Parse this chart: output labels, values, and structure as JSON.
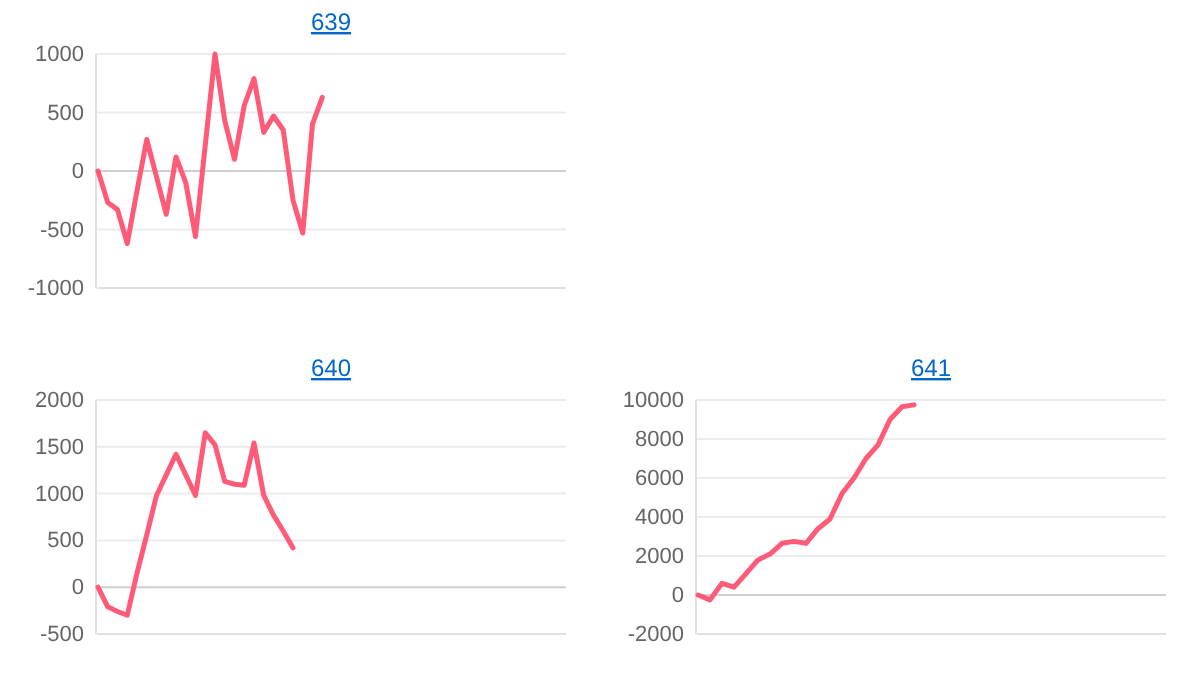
{
  "chart_data": [
    {
      "type": "line",
      "title": "639",
      "categories": [
        null,
        null,
        null,
        null,
        null,
        null,
        null,
        null,
        null,
        null,
        null,
        null,
        null,
        null,
        null,
        null,
        null,
        null,
        null,
        null,
        null,
        null,
        null,
        null,
        null,
        null,
        null,
        null,
        null,
        null,
        null,
        null,
        null,
        null,
        null,
        null,
        null,
        null,
        null,
        null,
        null,
        null,
        null,
        null,
        null,
        null,
        null,
        null,
        null
      ],
      "series": [
        {
          "color": "#ff5a78",
          "values": [
            0,
            -270,
            -330,
            -620,
            -170,
            270,
            -50,
            -370,
            120,
            -100,
            -560,
            220,
            1000,
            430,
            100,
            560,
            790,
            330,
            470,
            350,
            -250,
            -530,
            400,
            630,
            null,
            null,
            null,
            null,
            null,
            null,
            null,
            null,
            null,
            null,
            null,
            null,
            null,
            null,
            null,
            null,
            null,
            null,
            null,
            null,
            null,
            null,
            null,
            null,
            null
          ]
        }
      ],
      "ylim": [
        -1000,
        1000
      ],
      "yticks": [
        -1000,
        -500,
        0,
        500,
        1000
      ],
      "grid": "y",
      "tick_labels": "y",
      "marker": "none",
      "line_style": "solid",
      "legend": false
    },
    {
      "type": "line",
      "title": "640",
      "categories": [
        null,
        null,
        null,
        null,
        null,
        null,
        null,
        null,
        null,
        null,
        null,
        null,
        null,
        null,
        null,
        null,
        null,
        null,
        null,
        null,
        null,
        null,
        null,
        null,
        null,
        null,
        null,
        null,
        null,
        null,
        null,
        null,
        null,
        null,
        null,
        null,
        null,
        null,
        null,
        null,
        null,
        null,
        null,
        null,
        null,
        null,
        null,
        null,
        null
      ],
      "series": [
        {
          "color": "#ff5a78",
          "values": [
            0,
            -210,
            -260,
            -300,
            150,
            560,
            980,
            1200,
            1420,
            1200,
            980,
            1650,
            1520,
            1130,
            1100,
            1090,
            1540,
            980,
            770,
            600,
            420,
            null,
            null,
            null,
            null,
            null,
            null,
            null,
            null,
            null,
            null,
            null,
            null,
            null,
            null,
            null,
            null,
            null,
            null,
            null,
            null,
            null,
            null,
            null,
            null,
            null,
            null,
            null,
            null
          ]
        }
      ],
      "ylim": [
        -500,
        2000
      ],
      "yticks": [
        -500,
        0,
        500,
        1000,
        1500,
        2000
      ],
      "grid": "y",
      "tick_labels": "y",
      "marker": "none",
      "line_style": "solid",
      "legend": false
    },
    {
      "type": "line",
      "title": "641",
      "categories": [
        null,
        null,
        null,
        null,
        null,
        null,
        null,
        null,
        null,
        null,
        null,
        null,
        null,
        null,
        null,
        null,
        null,
        null,
        null,
        null,
        null,
        null,
        null,
        null,
        null,
        null,
        null,
        null,
        null,
        null,
        null,
        null,
        null,
        null,
        null,
        null,
        null,
        null,
        null,
        null
      ],
      "series": [
        {
          "color": "#ff5a78",
          "values": [
            0,
            -250,
            600,
            400,
            1100,
            1800,
            2100,
            2650,
            2750,
            2650,
            3400,
            3900,
            5200,
            6000,
            7000,
            7700,
            9000,
            9650,
            9750,
            null,
            null,
            null,
            null,
            null,
            null,
            null,
            null,
            null,
            null,
            null,
            null,
            null,
            null,
            null,
            null,
            null,
            null,
            null,
            null,
            null
          ]
        }
      ],
      "ylim": [
        -2000,
        10000
      ],
      "yticks": [
        -2000,
        0,
        2000,
        4000,
        6000,
        8000,
        10000
      ],
      "grid": "y",
      "tick_labels": "y",
      "marker": "none",
      "line_style": "solid",
      "legend": false
    }
  ]
}
